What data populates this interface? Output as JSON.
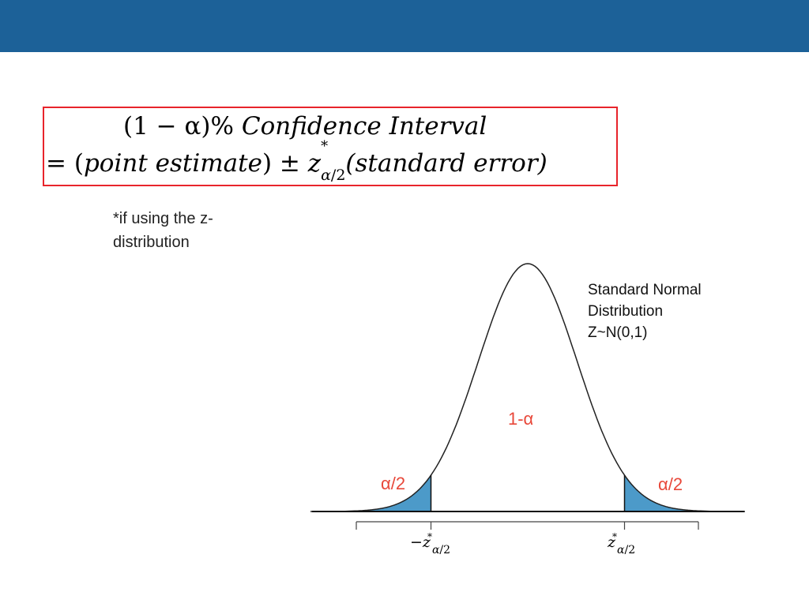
{
  "header": {
    "bar_color": "#1c6198"
  },
  "formula": {
    "line1": {
      "lead": "(1 − α)% ",
      "text": "Confidence Interval"
    },
    "line2": {
      "equals": "= (",
      "point_estimate": "point estimate",
      "close_pm": ") ± ",
      "z": "z",
      "star": "*",
      "sub": "α",
      "sub_den": "/2",
      "standard_error": "(standard error)"
    },
    "border_color": "#e8242b"
  },
  "footnote": {
    "text": "*if using the z-distribution"
  },
  "diagram": {
    "distribution_label": [
      "Standard Normal",
      "Distribution",
      "Z~N(0,1)"
    ],
    "center_label": "1-α",
    "left_tail_label": "α/2",
    "right_tail_label": "α/2",
    "axis_left_label": {
      "prefix": "−z",
      "sup": "*",
      "sub": "α",
      "den": "/2"
    },
    "axis_right_label": {
      "prefix": "z",
      "sup": "*",
      "sub": "α",
      "den": "/2"
    },
    "tail_color": "#4c9ac9",
    "label_color": "#e8483a",
    "curve_type": "standard normal density",
    "critical_z": 1.96
  }
}
